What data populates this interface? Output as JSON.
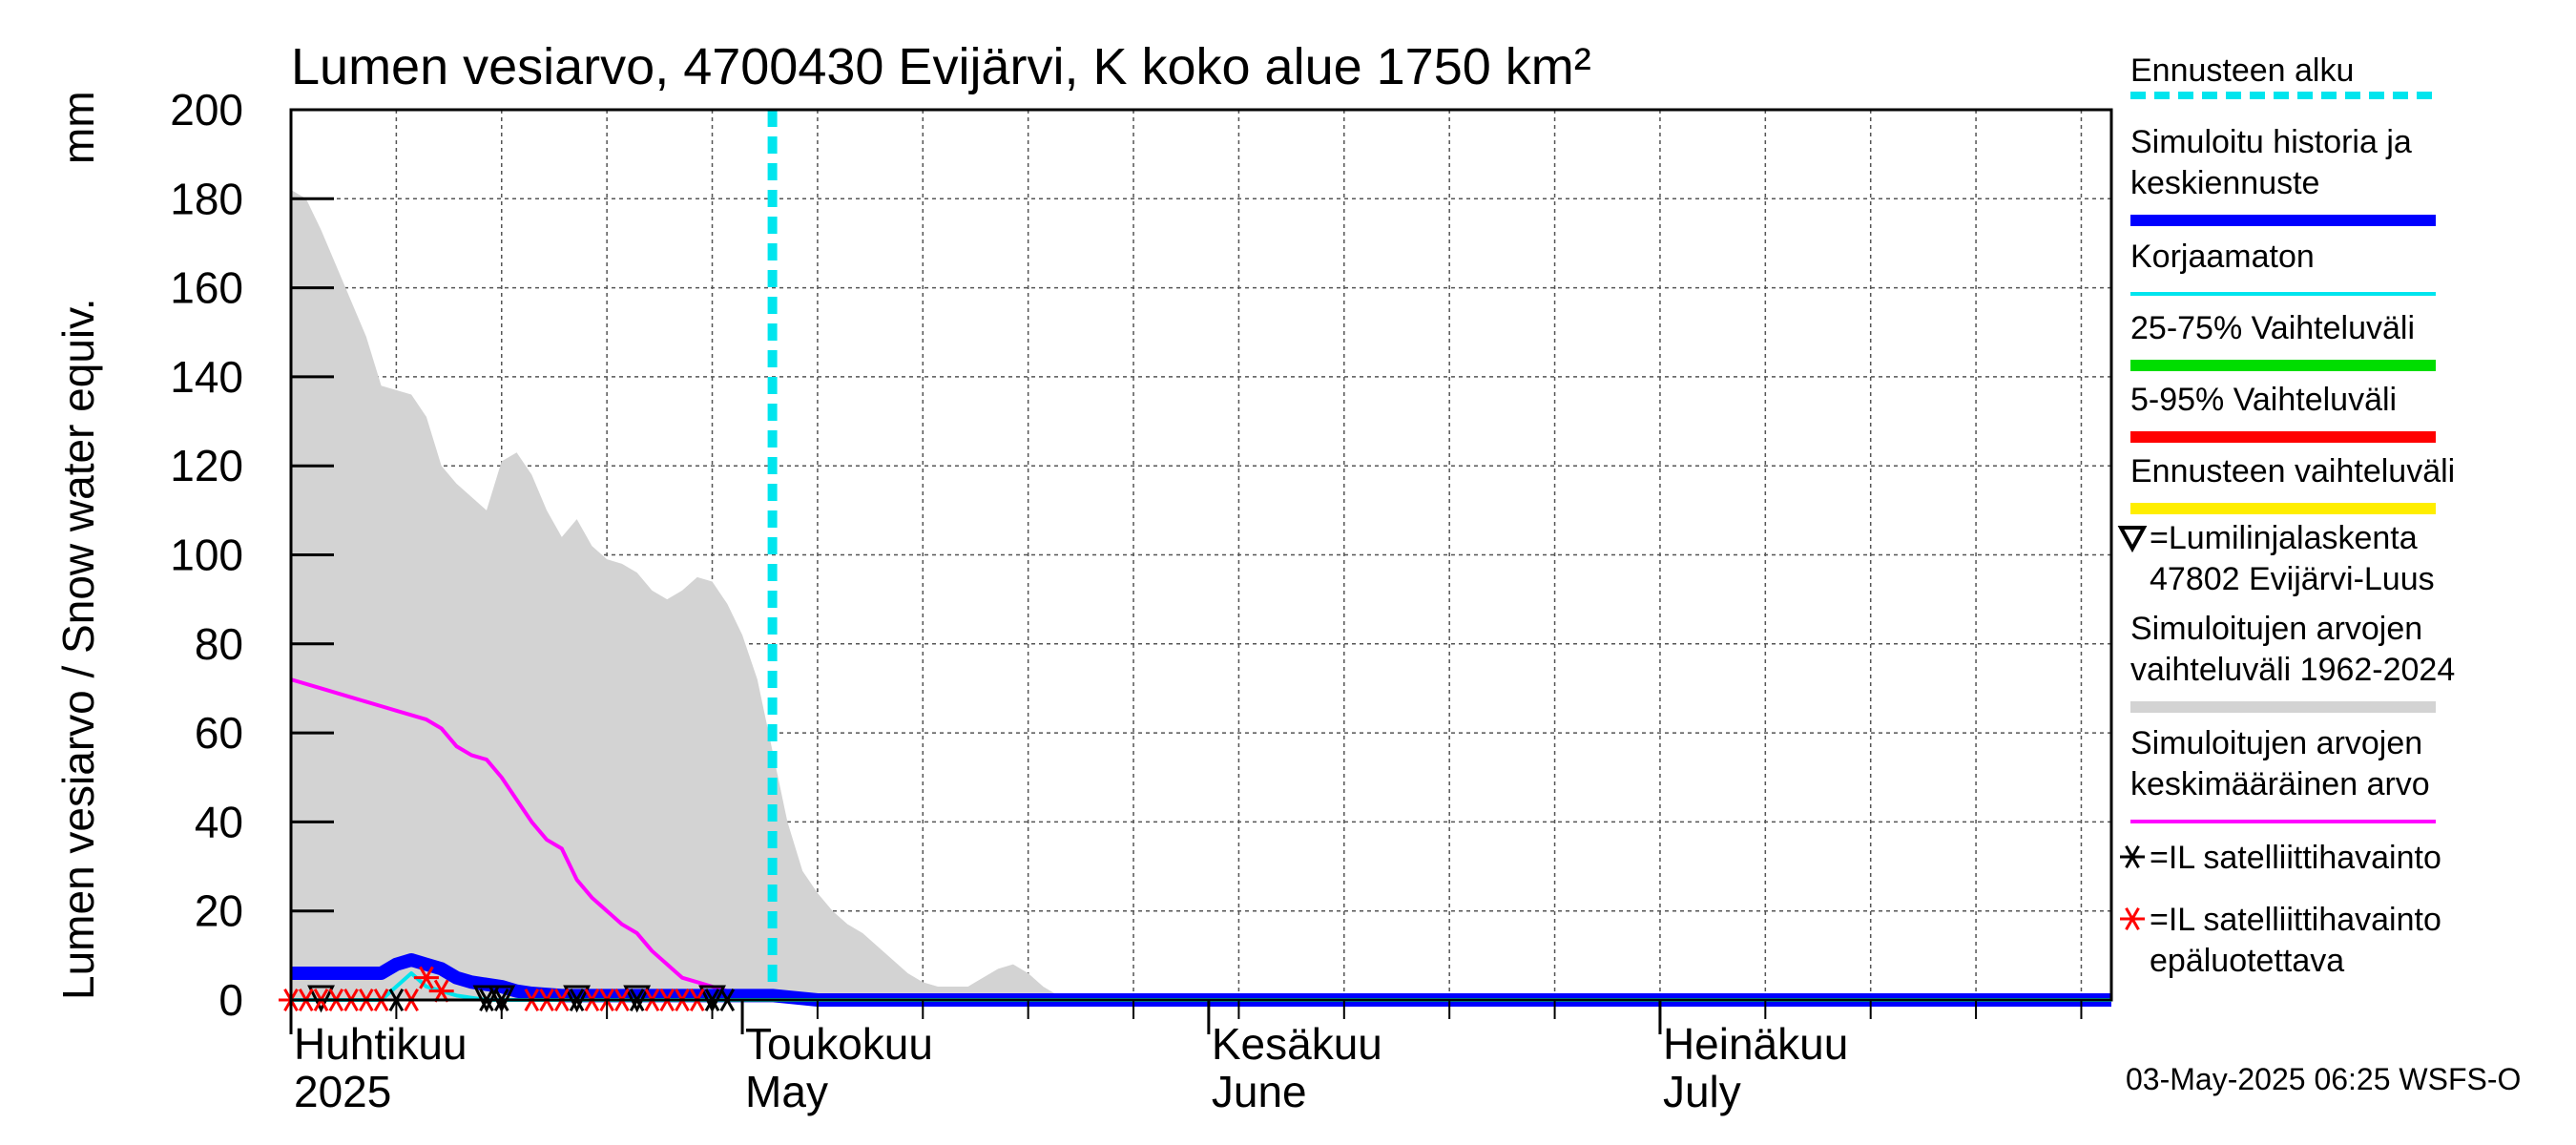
{
  "chart_data": {
    "type": "area",
    "title": "Lumen vesiarvo, 4700430 Evijärvi, K koko alue 1750 km²",
    "ylabel": "Lumen vesiarvo / Snow water equiv.",
    "yunit": "mm",
    "ylim": [
      0,
      200
    ],
    "yticks": [
      0,
      20,
      40,
      60,
      80,
      100,
      120,
      140,
      160,
      180,
      200
    ],
    "xlim": [
      "2025-04-01",
      "2025-07-31"
    ],
    "grid": true,
    "month_labels": [
      {
        "date": "2025-04-01",
        "fi": "Huhtikuu",
        "en": "2025"
      },
      {
        "date": "2025-05-01",
        "fi": "Toukokuu",
        "en": "May"
      },
      {
        "date": "2025-06-01",
        "fi": "Kesäkuu",
        "en": "June"
      },
      {
        "date": "2025-07-01",
        "fi": "Heinäkuu",
        "en": "July"
      }
    ],
    "forecast_start": "2025-05-03",
    "series": [
      {
        "name": "Simuloitujen arvojen vaihteluväli 1962-2024",
        "color": "#d3d3d3",
        "kind": "band",
        "x": [
          "2025-04-01",
          "2025-04-02",
          "2025-04-03",
          "2025-04-04",
          "2025-04-05",
          "2025-04-06",
          "2025-04-07",
          "2025-04-08",
          "2025-04-09",
          "2025-04-10",
          "2025-04-11",
          "2025-04-12",
          "2025-04-13",
          "2025-04-14",
          "2025-04-15",
          "2025-04-16",
          "2025-04-17",
          "2025-04-18",
          "2025-04-19",
          "2025-04-20",
          "2025-04-21",
          "2025-04-22",
          "2025-04-23",
          "2025-04-24",
          "2025-04-25",
          "2025-04-26",
          "2025-04-27",
          "2025-04-28",
          "2025-04-29",
          "2025-04-30",
          "2025-05-01",
          "2025-05-02",
          "2025-05-03",
          "2025-05-04",
          "2025-05-05",
          "2025-05-06",
          "2025-05-07",
          "2025-05-08",
          "2025-05-09",
          "2025-05-10",
          "2025-05-11",
          "2025-05-12",
          "2025-05-13",
          "2025-05-14",
          "2025-05-15",
          "2025-05-16",
          "2025-05-17",
          "2025-05-18",
          "2025-05-19",
          "2025-05-20",
          "2025-05-21",
          "2025-05-22",
          "2025-05-23",
          "2025-05-24",
          "2025-05-25",
          "2025-05-26",
          "2025-05-27"
        ],
        "upper": [
          182,
          180,
          173,
          165,
          157,
          149,
          138,
          137,
          136,
          131,
          120,
          116,
          113,
          110,
          121,
          123,
          118,
          110,
          104,
          108,
          102,
          99,
          98,
          96,
          92,
          90,
          92,
          95,
          94,
          89,
          82,
          72,
          56,
          40,
          29,
          24,
          20,
          17,
          15,
          12,
          9,
          6,
          4,
          3,
          3,
          3,
          5,
          7,
          8,
          6,
          3,
          1,
          0,
          0,
          0,
          0,
          0
        ],
        "lower": [
          0,
          0,
          0,
          0,
          0,
          0,
          0,
          0,
          0,
          0,
          0,
          0,
          0,
          0,
          0,
          0,
          0,
          0,
          0,
          0,
          0,
          0,
          0,
          0,
          0,
          0,
          0,
          0,
          0,
          0,
          0,
          0,
          0,
          0,
          0,
          0,
          0,
          0,
          0,
          0,
          0,
          0,
          0,
          0,
          0,
          0,
          0,
          0,
          0,
          0,
          0,
          0,
          0,
          0,
          0,
          0,
          0
        ]
      },
      {
        "name": "Simuloitujen arvojen keskimääräinen arvo",
        "color": "#ff00ff",
        "kind": "line",
        "x": [
          "2025-04-01",
          "2025-04-03",
          "2025-04-05",
          "2025-04-07",
          "2025-04-08",
          "2025-04-09",
          "2025-04-10",
          "2025-04-11",
          "2025-04-12",
          "2025-04-13",
          "2025-04-14",
          "2025-04-15",
          "2025-04-16",
          "2025-04-17",
          "2025-04-18",
          "2025-04-19",
          "2025-04-20",
          "2025-04-21",
          "2025-04-22",
          "2025-04-23",
          "2025-04-24",
          "2025-04-25",
          "2025-04-26",
          "2025-04-27",
          "2025-04-28",
          "2025-04-29",
          "2025-04-30",
          "2025-05-01",
          "2025-05-02",
          "2025-05-04",
          "2025-05-07",
          "2025-07-31"
        ],
        "y": [
          72,
          70,
          68,
          66,
          65,
          64,
          63,
          61,
          57,
          55,
          54,
          50,
          45,
          40,
          36,
          34,
          27,
          23,
          20,
          17,
          15,
          11,
          8,
          5,
          4,
          3,
          2,
          1.5,
          1,
          0.5,
          0,
          0
        ]
      },
      {
        "name": "Simuloitu historia ja keskiennuste",
        "color": "#0000ff",
        "kind": "line",
        "x": [
          "2025-04-01",
          "2025-04-05",
          "2025-04-07",
          "2025-04-08",
          "2025-04-09",
          "2025-04-10",
          "2025-04-11",
          "2025-04-12",
          "2025-04-13",
          "2025-04-14",
          "2025-04-15",
          "2025-04-16",
          "2025-04-17",
          "2025-04-19",
          "2025-04-22",
          "2025-04-26",
          "2025-04-30",
          "2025-05-03",
          "2025-05-06",
          "2025-07-31"
        ],
        "y": [
          6,
          6,
          6,
          8,
          9,
          8,
          7,
          5,
          4,
          3.5,
          3,
          2,
          1.5,
          1,
          1,
          1,
          1,
          1,
          0,
          0
        ]
      },
      {
        "name": "Korjaamaton",
        "color": "#00e5ee",
        "kind": "line",
        "x": [
          "2025-04-01",
          "2025-04-07",
          "2025-04-08",
          "2025-04-09",
          "2025-04-10",
          "2025-04-12",
          "2025-04-14",
          "2025-07-31"
        ],
        "y": [
          0,
          0,
          3,
          6,
          3,
          1,
          0,
          0
        ]
      }
    ],
    "markers": [
      {
        "name": "=Lumilinjalaskenta 47802 Evijärvi-Luus",
        "symbol": "triangle-down",
        "color": "#000000",
        "x": [
          "2025-04-03",
          "2025-04-14",
          "2025-04-15",
          "2025-04-20",
          "2025-04-24",
          "2025-04-29"
        ],
        "y": [
          0,
          0,
          0,
          0,
          0,
          0
        ]
      },
      {
        "name": "=IL satelliittihavainto",
        "symbol": "asterisk",
        "color": "#000000",
        "x": [
          "2025-04-08",
          "2025-04-14",
          "2025-04-15",
          "2025-04-20",
          "2025-04-24",
          "2025-04-29",
          "2025-04-30"
        ],
        "y": [
          0,
          0,
          0,
          0,
          0,
          0,
          0
        ]
      },
      {
        "name": "=IL satelliittihavainto epäluotettava",
        "symbol": "asterisk",
        "color": "#ff0000",
        "x": [
          "2025-04-01",
          "2025-04-02",
          "2025-04-03",
          "2025-04-04",
          "2025-04-05",
          "2025-04-06",
          "2025-04-07",
          "2025-04-09",
          "2025-04-10",
          "2025-04-11",
          "2025-04-17",
          "2025-04-18",
          "2025-04-19",
          "2025-04-21",
          "2025-04-22",
          "2025-04-23",
          "2025-04-25",
          "2025-04-26",
          "2025-04-27",
          "2025-04-28"
        ],
        "y": [
          0,
          0,
          0,
          0,
          0,
          0,
          0,
          0,
          5,
          2,
          0,
          0,
          0,
          0,
          0,
          0,
          0,
          0,
          0,
          0
        ]
      }
    ],
    "legend": {
      "placement": "right",
      "items": [
        {
          "lines": [
            "Ennusteen alku"
          ],
          "color": "#00e5ee",
          "style": "dashed"
        },
        {
          "lines": [
            "Simuloitu historia ja",
            "keskiennuste"
          ],
          "color": "#0000ff",
          "style": "thick"
        },
        {
          "lines": [
            "Korjaamaton"
          ],
          "color": "#00e5ee",
          "style": "thin"
        },
        {
          "lines": [
            "25-75% Vaihteluväli"
          ],
          "color": "#00dd00",
          "style": "thick"
        },
        {
          "lines": [
            "5-95% Vaihteluväli"
          ],
          "color": "#ff0000",
          "style": "thick"
        },
        {
          "lines": [
            "Ennusteen vaihteluväli"
          ],
          "color": "#ffee00",
          "style": "thick"
        },
        {
          "lines": [
            "=Lumilinjalaskenta",
            "47802 Evijärvi-Luus"
          ],
          "color": "#000000",
          "style": "triangle"
        },
        {
          "lines": [
            "Simuloitujen arvojen",
            "vaihteluväli 1962-2024"
          ],
          "color": "#d3d3d3",
          "style": "thick"
        },
        {
          "lines": [
            "Simuloitujen arvojen",
            "keskimääräinen arvo"
          ],
          "color": "#ff00ff",
          "style": "thin"
        },
        {
          "lines": [
            "=IL satelliittihavainto"
          ],
          "color": "#000000",
          "style": "asterisk"
        },
        {
          "lines": [
            "=IL satelliittihavainto",
            "epäluotettava"
          ],
          "color": "#ff0000",
          "style": "asterisk"
        }
      ]
    },
    "footer": "03-May-2025 06:25 WSFS-O"
  }
}
